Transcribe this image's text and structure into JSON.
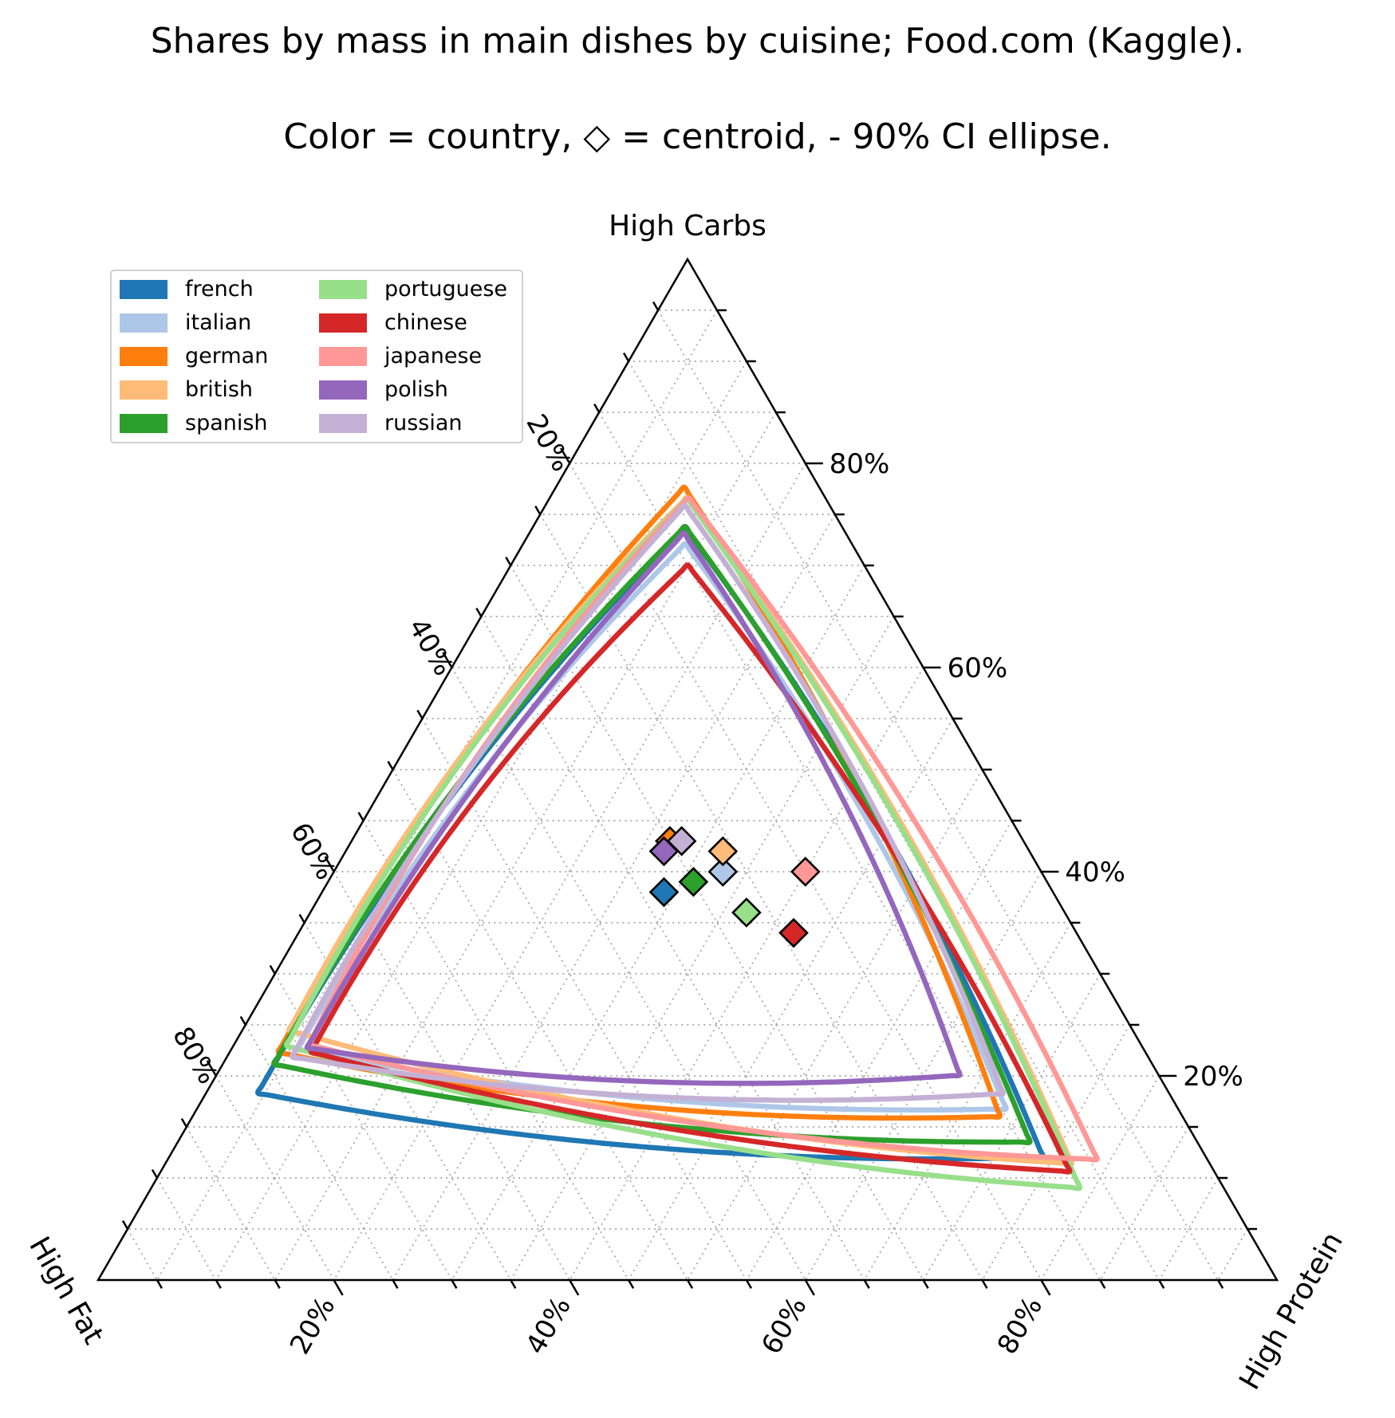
{
  "title_line1": "Shares by mass in main dishes by cuisine; Food.com (Kaggle).",
  "title_line2": "Color = country, ◇ = centroid, - 90% CI ellipse.",
  "chart_data": {
    "type": "scatter",
    "subtype": "ternary",
    "axes": {
      "top": {
        "label": "High Carbs",
        "ticks": [
          "20%",
          "40%",
          "60%",
          "80%"
        ],
        "tick_values": [
          0.2,
          0.4,
          0.6,
          0.8
        ]
      },
      "left": {
        "label": "High Fat",
        "ticks": [
          "20%",
          "40%",
          "60%",
          "80%"
        ],
        "tick_values": [
          0.2,
          0.4,
          0.6,
          0.8
        ]
      },
      "right": {
        "label": "High Protein",
        "ticks": [
          "20%",
          "40%",
          "60%",
          "80%"
        ],
        "tick_values": [
          0.2,
          0.4,
          0.6,
          0.8
        ]
      }
    },
    "grid": true,
    "grid_step": 0.05,
    "legend_placement": "top-left",
    "series": [
      {
        "name": "french",
        "color": "#1f77b4",
        "centroid": {
          "carbs": 0.38,
          "protein": 0.29,
          "fat": 0.33
        },
        "ci_region": {
          "carb_max": 0.78,
          "protein_max": 0.79,
          "fat_max": 0.82,
          "carb_min": 0.095,
          "protein_min": 0.015,
          "fat_min": 0.005
        }
      },
      {
        "name": "italian",
        "color": "#aec7e8",
        "centroid": {
          "carbs": 0.4,
          "protein": 0.33,
          "fat": 0.27
        },
        "ci_region": {
          "carb_max": 0.76,
          "protein_max": 0.73,
          "fat_max": 0.76,
          "carb_min": 0.145,
          "protein_min": 0.03,
          "fat_min": 0.06
        }
      },
      {
        "name": "german",
        "color": "#ff7f0e",
        "centroid": {
          "carbs": 0.43,
          "protein": 0.27,
          "fat": 0.3
        },
        "ci_region": {
          "carb_max": 0.82,
          "protein_max": 0.73,
          "fat_max": 0.78,
          "carb_min": 0.135,
          "protein_min": 0.015,
          "fat_min": 0.06
        }
      },
      {
        "name": "british",
        "color": "#ffbb78",
        "centroid": {
          "carbs": 0.42,
          "protein": 0.32,
          "fat": 0.26
        },
        "ci_region": {
          "carb_max": 0.81,
          "protein_max": 0.82,
          "fat_max": 0.76,
          "carb_min": 0.085,
          "protein_min": 0.01,
          "fat_min": 0.03
        }
      },
      {
        "name": "spanish",
        "color": "#2ca02c",
        "centroid": {
          "carbs": 0.39,
          "protein": 0.31,
          "fat": 0.3
        },
        "ci_region": {
          "carb_max": 0.78,
          "protein_max": 0.77,
          "fat_max": 0.79,
          "carb_min": 0.11,
          "protein_min": 0.015,
          "fat_min": 0.03
        }
      },
      {
        "name": "portuguese",
        "color": "#98df8a",
        "centroid": {
          "carbs": 0.36,
          "protein": 0.37,
          "fat": 0.27
        },
        "ci_region": {
          "carb_max": 0.81,
          "protein_max": 0.84,
          "fat_max": 0.77,
          "carb_min": 0.06,
          "protein_min": 0.015,
          "fat_min": 0.01
        }
      },
      {
        "name": "chinese",
        "color": "#d62728",
        "centroid": {
          "carbs": 0.34,
          "protein": 0.42,
          "fat": 0.24
        },
        "ci_region": {
          "carb_max": 0.74,
          "protein_max": 0.82,
          "fat_max": 0.75,
          "carb_min": 0.08,
          "protein_min": 0.04,
          "fat_min": 0.015
        }
      },
      {
        "name": "japanese",
        "color": "#ff9896",
        "centroid": {
          "carbs": 0.4,
          "protein": 0.4,
          "fat": 0.2
        },
        "ci_region": {
          "carb_max": 0.81,
          "protein_max": 0.84,
          "fat_max": 0.75,
          "carb_min": 0.09,
          "protein_min": 0.035,
          "fat_min": 0.02
        }
      },
      {
        "name": "polish",
        "color": "#9467bd",
        "centroid": {
          "carbs": 0.42,
          "protein": 0.27,
          "fat": 0.31
        },
        "ci_region": {
          "carb_max": 0.77,
          "protein_max": 0.67,
          "fat_max": 0.75,
          "carb_min": 0.18,
          "protein_min": 0.04,
          "fat_min": 0.08
        }
      },
      {
        "name": "russian",
        "color": "#c5b0d5",
        "centroid": {
          "carbs": 0.43,
          "protein": 0.28,
          "fat": 0.29
        },
        "ci_region": {
          "carb_max": 0.8,
          "protein_max": 0.72,
          "fat_max": 0.77,
          "carb_min": 0.16,
          "protein_min": 0.03,
          "fat_min": 0.05
        }
      }
    ]
  }
}
